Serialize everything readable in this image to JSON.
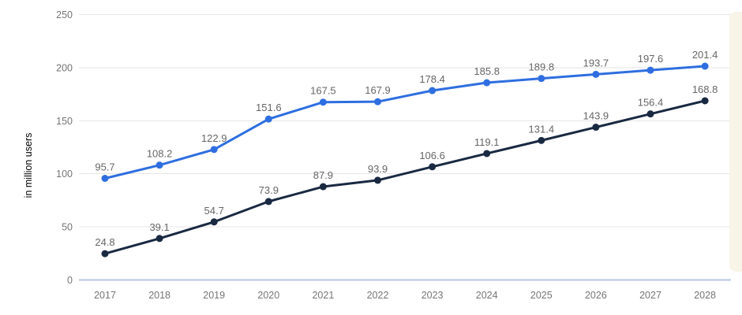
{
  "chart_data": {
    "type": "line",
    "title": "",
    "x": [
      "2017",
      "2018",
      "2019",
      "2020",
      "2021",
      "2022",
      "2023",
      "2024",
      "2025",
      "2026",
      "2027",
      "2028"
    ],
    "ylabel": "in million users",
    "ylim": [
      0,
      250
    ],
    "yticks": [
      0,
      50,
      100,
      150,
      200,
      250
    ],
    "grid": true,
    "legend_position": "none",
    "point_labels_shown": true,
    "series": [
      {
        "name": "upper-blue-series",
        "color": "#2e6ee0",
        "values": [
          95.7,
          108.2,
          122.9,
          151.6,
          167.5,
          167.9,
          178.4,
          185.8,
          189.8,
          193.7,
          197.6,
          201.4
        ]
      },
      {
        "name": "lower-dark-navy-series",
        "color": "#192942",
        "values": [
          24.8,
          39.1,
          54.7,
          73.9,
          87.9,
          93.9,
          106.6,
          119.1,
          131.4,
          143.9,
          156.4,
          168.8
        ]
      }
    ]
  },
  "colors": {
    "background": "#ffffff",
    "gridline": "#e6e6e6",
    "baseline": "#b6c6de",
    "tick_text": "#757575",
    "data_label_text": "#666666",
    "side_strip": "#f8f4e8"
  }
}
